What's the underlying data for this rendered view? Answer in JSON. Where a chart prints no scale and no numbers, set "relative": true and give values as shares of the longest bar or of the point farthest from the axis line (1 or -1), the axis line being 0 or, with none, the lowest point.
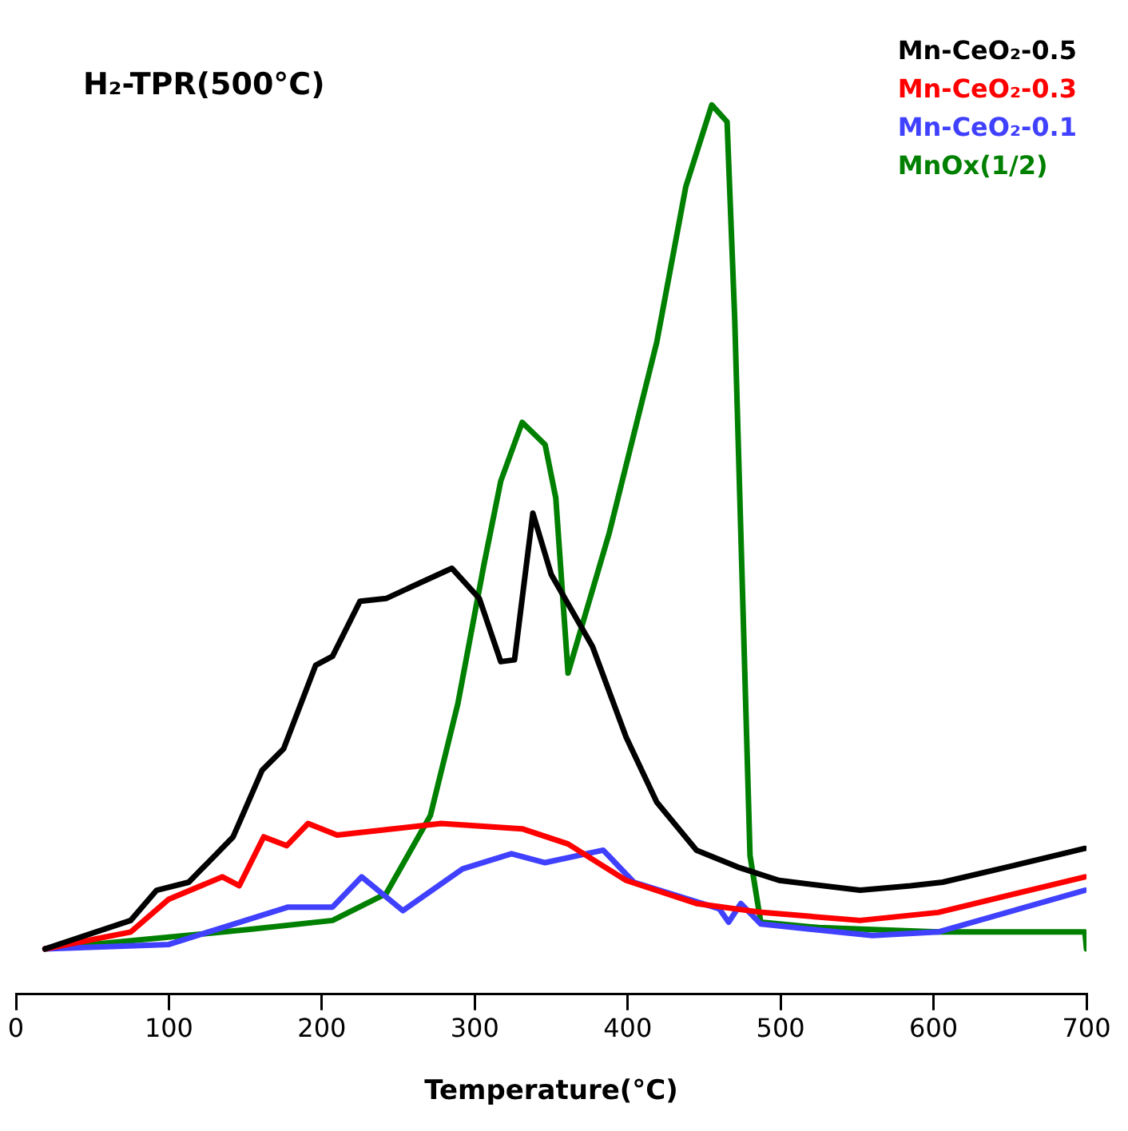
{
  "chart_data": {
    "type": "line",
    "title": "H₂-TPR(500°C)",
    "xlabel": "Temperature(°C)",
    "relative": true,
    "xlim": [
      0,
      700
    ],
    "xticks": [
      0,
      100,
      200,
      300,
      400,
      500,
      600,
      700
    ],
    "grid": false,
    "legend": "top right",
    "marker": "none",
    "line_style": "solid",
    "series": [
      {
        "name": "Mn-CeO₂-0.5",
        "color": "#000000",
        "x": [
          19,
          75,
          92,
          113,
          142,
          161,
          175,
          196,
          207,
          225,
          242,
          285,
          303,
          317,
          326,
          338,
          350,
          377,
          399,
          419,
          445,
          472,
          499,
          552,
          585,
          606,
          653,
          699
        ],
        "values": [
          0.051,
          0.083,
          0.117,
          0.126,
          0.177,
          0.252,
          0.276,
          0.37,
          0.38,
          0.442,
          0.445,
          0.479,
          0.445,
          0.374,
          0.376,
          0.541,
          0.472,
          0.391,
          0.289,
          0.216,
          0.162,
          0.143,
          0.128,
          0.117,
          0.122,
          0.126,
          0.145,
          0.164
        ]
      },
      {
        "name": "Mn-CeO₂-0.3",
        "color": "#ff0000",
        "x": [
          19,
          75,
          100,
          135,
          146,
          162,
          177,
          191,
          210,
          278,
          331,
          361,
          399,
          445,
          488,
          552,
          603,
          699
        ],
        "values": [
          0.051,
          0.07,
          0.107,
          0.132,
          0.122,
          0.177,
          0.167,
          0.192,
          0.179,
          0.192,
          0.186,
          0.169,
          0.128,
          0.102,
          0.092,
          0.083,
          0.092,
          0.132
        ]
      },
      {
        "name": "Mn-CeO₂-0.1",
        "color": "#4040ff",
        "x": [
          19,
          100,
          135,
          178,
          207,
          226,
          253,
          292,
          324,
          346,
          384,
          404,
          460,
          466,
          474,
          487,
          560,
          603,
          699
        ],
        "values": [
          0.051,
          0.056,
          0.075,
          0.098,
          0.098,
          0.132,
          0.094,
          0.141,
          0.158,
          0.148,
          0.162,
          0.126,
          0.096,
          0.081,
          0.102,
          0.079,
          0.066,
          0.07,
          0.117
        ]
      },
      {
        "name": "MnOx(1/2)",
        "color": "#008000",
        "x": [
          19,
          153,
          207,
          242,
          271,
          289,
          306,
          317,
          331,
          346,
          353,
          361,
          388,
          419,
          438,
          455,
          465,
          470,
          480,
          487,
          525,
          603,
          699,
          700
        ],
        "values": [
          0.051,
          0.073,
          0.083,
          0.113,
          0.201,
          0.327,
          0.483,
          0.577,
          0.643,
          0.618,
          0.558,
          0.361,
          0.519,
          0.733,
          0.908,
          1,
          0.981,
          0.759,
          0.156,
          0.081,
          0.075,
          0.07,
          0.07,
          0.051
        ]
      }
    ]
  }
}
